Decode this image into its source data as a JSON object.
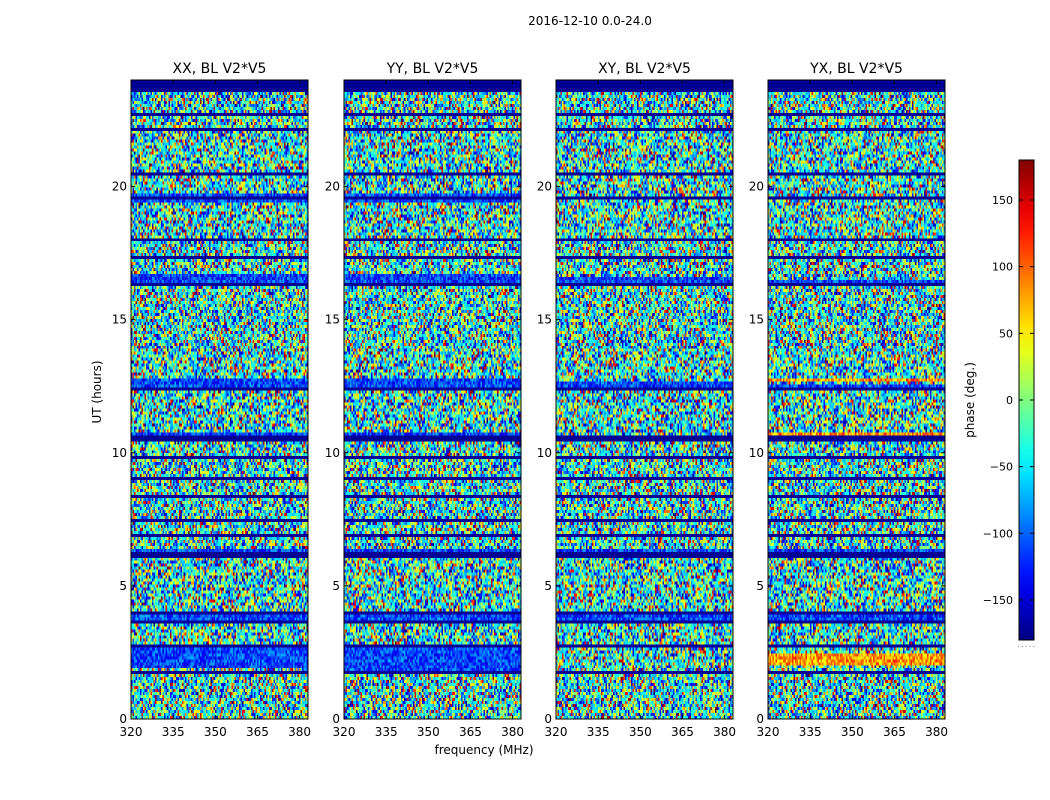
{
  "figure_title": "2016-12-10 0.0-24.0",
  "xlabel": "frequency (MHz)",
  "ylabel": "UT (hours)",
  "colorbar_label": "phase (deg.)",
  "colorbar_extra": ".....",
  "chart_data": {
    "type": "heatmap",
    "colormap": "jet",
    "panels": [
      {
        "title": "XX, BL V2*V5",
        "polarization": "XX",
        "baseline": "V2*V5"
      },
      {
        "title": "YY, BL V2*V5",
        "polarization": "YY",
        "baseline": "V2*V5"
      },
      {
        "title": "XY, BL V2*V5",
        "polarization": "XY",
        "baseline": "V2*V5"
      },
      {
        "title": "YX, BL V2*V5",
        "polarization": "YX",
        "baseline": "V2*V5"
      }
    ],
    "x": {
      "label": "frequency (MHz)",
      "range": [
        320,
        383
      ],
      "ticks": [
        320,
        335,
        350,
        365,
        380
      ]
    },
    "y": {
      "label": "UT (hours)",
      "range": [
        0,
        24
      ],
      "ticks": [
        0,
        5,
        10,
        15,
        20
      ]
    },
    "colorbar": {
      "label": "phase (deg.)",
      "range": [
        -180,
        180
      ],
      "ticks": [
        -150,
        -100,
        -50,
        0,
        50,
        100,
        150
      ]
    },
    "features": {
      "masked_bands_hours": [
        [
          0.45,
          0.5
        ],
        [
          1.65,
          1.8
        ],
        [
          2.7,
          2.75
        ],
        [
          3.6,
          3.75
        ],
        [
          3.95,
          4.0
        ],
        [
          4.6,
          4.65
        ],
        [
          5.35,
          5.4
        ],
        [
          6.1,
          6.3
        ],
        [
          6.85,
          6.9
        ],
        [
          7.45,
          7.5
        ],
        [
          8.3,
          8.4
        ],
        [
          9.0,
          9.05
        ],
        [
          9.8,
          9.85
        ],
        [
          10.45,
          10.6
        ],
        [
          11.4,
          11.45
        ],
        [
          12.35,
          12.5
        ],
        [
          13.3,
          13.35
        ],
        [
          14.0,
          14.05
        ],
        [
          14.8,
          14.85
        ],
        [
          15.45,
          15.5
        ],
        [
          16.25,
          16.35
        ],
        [
          16.55,
          16.6
        ],
        [
          17.3,
          17.35
        ],
        [
          18.0,
          18.05
        ],
        [
          18.9,
          18.95
        ],
        [
          19.55,
          19.6
        ],
        [
          20.45,
          20.5
        ],
        [
          21.4,
          21.45
        ],
        [
          22.1,
          22.15
        ],
        [
          22.7,
          22.75
        ],
        [
          23.55,
          24.0
        ]
      ],
      "low_phase_bands_hours": {
        "XX": [
          [
            1.95,
            2.7
          ],
          [
            3.7,
            3.95
          ],
          [
            6.15,
            6.35
          ],
          [
            10.5,
            10.8
          ],
          [
            12.45,
            12.8
          ],
          [
            16.3,
            16.7
          ],
          [
            19.35,
            19.7
          ]
        ],
        "YY": [
          [
            1.8,
            2.7
          ],
          [
            3.7,
            3.95
          ],
          [
            6.15,
            6.35
          ],
          [
            10.5,
            10.8
          ],
          [
            12.45,
            12.8
          ],
          [
            16.3,
            16.7
          ],
          [
            19.35,
            19.7
          ]
        ],
        "XY": [
          [
            6.15,
            6.35
          ],
          [
            16.3,
            16.6
          ],
          [
            12.45,
            12.7
          ],
          [
            3.7,
            3.9
          ]
        ],
        "YX": [
          [
            6.15,
            6.35
          ],
          [
            16.3,
            16.5
          ],
          [
            3.7,
            3.9
          ],
          [
            12.5,
            12.6
          ]
        ]
      },
      "high_phase_bands_hours": {
        "YX": [
          [
            10.5,
            10.8
          ],
          [
            12.7,
            12.8
          ],
          [
            2.0,
            2.5
          ]
        ]
      }
    }
  }
}
